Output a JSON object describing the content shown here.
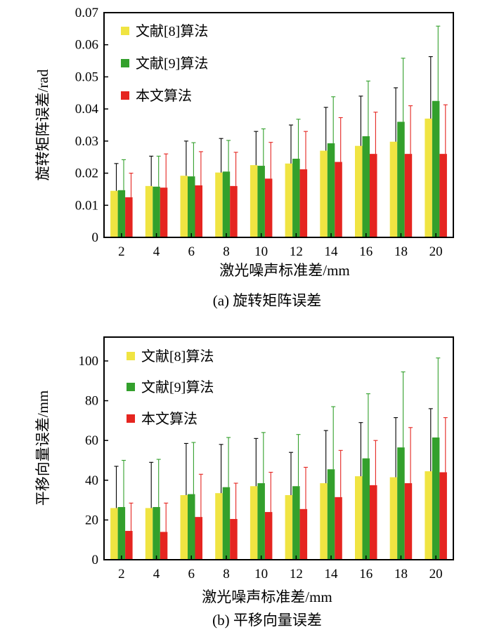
{
  "colors": {
    "series": [
      "#f0e442",
      "#33a02c",
      "#e52520"
    ],
    "error_bar": "#000000",
    "axis": "#000000"
  },
  "chart_data": [
    {
      "type": "bar",
      "caption": "(a) 旋转矩阵误差",
      "xlabel": "激光噪声标准差/mm",
      "ylabel": "旋转矩阵误差/rad",
      "categories": [
        "2",
        "4",
        "6",
        "8",
        "10",
        "12",
        "14",
        "16",
        "18",
        "20"
      ],
      "ylim": [
        0,
        0.07
      ],
      "yticks": [
        0,
        0.01,
        0.02,
        0.03,
        0.04,
        0.05,
        0.06,
        0.07
      ],
      "ytick_labels": [
        "0",
        "0.01",
        "0.02",
        "0.03",
        "0.04",
        "0.05",
        "0.06",
        "0.07"
      ],
      "legend_position": "top-left",
      "series": [
        {
          "name": "文献[8]算法",
          "values": [
            0.0145,
            0.016,
            0.0192,
            0.0202,
            0.0225,
            0.023,
            0.027,
            0.0285,
            0.0298,
            0.037
          ],
          "errors": [
            0.0085,
            0.0093,
            0.0108,
            0.0106,
            0.0105,
            0.012,
            0.0135,
            0.0155,
            0.0168,
            0.0193
          ]
        },
        {
          "name": "文献[9]算法",
          "values": [
            0.0147,
            0.0158,
            0.019,
            0.0205,
            0.0223,
            0.0245,
            0.0293,
            0.0315,
            0.036,
            0.0425
          ],
          "errors": [
            0.0095,
            0.0095,
            0.0105,
            0.0097,
            0.0115,
            0.0123,
            0.0145,
            0.0172,
            0.0198,
            0.0233
          ]
        },
        {
          "name": "本文算法",
          "values": [
            0.0125,
            0.0155,
            0.0162,
            0.016,
            0.0183,
            0.0212,
            0.0235,
            0.026,
            0.026,
            0.026
          ],
          "errors": [
            0.0075,
            0.0105,
            0.0105,
            0.0105,
            0.0113,
            0.0118,
            0.0138,
            0.013,
            0.015,
            0.0153
          ]
        }
      ]
    },
    {
      "type": "bar",
      "caption": "(b) 平移向量误差",
      "xlabel": "激光噪声标准差/mm",
      "ylabel": "平移向量误差/mm",
      "categories": [
        "2",
        "4",
        "6",
        "8",
        "10",
        "12",
        "14",
        "16",
        "18",
        "20"
      ],
      "ylim": [
        0,
        112
      ],
      "yticks": [
        0,
        20,
        40,
        60,
        80,
        100
      ],
      "ytick_labels": [
        "0",
        "20",
        "40",
        "60",
        "80",
        "100"
      ],
      "legend_position": "top-left",
      "series": [
        {
          "name": "文献[8]算法",
          "values": [
            26,
            26,
            32.5,
            33.5,
            37,
            32.5,
            38.5,
            42,
            41.5,
            44.5
          ],
          "errors": [
            21,
            23,
            26,
            24.5,
            24,
            21.5,
            26.5,
            27,
            30,
            31.5
          ]
        },
        {
          "name": "文献[9]算法",
          "values": [
            26.5,
            26.5,
            33,
            36.5,
            38.5,
            37,
            45.5,
            51,
            56.5,
            61.5
          ],
          "errors": [
            23.5,
            24,
            26,
            25,
            25.5,
            26,
            31.5,
            32.5,
            38,
            40
          ]
        },
        {
          "name": "本文算法",
          "values": [
            14.5,
            14,
            21.5,
            20.5,
            24,
            25.5,
            31.5,
            37.5,
            38.5,
            44
          ],
          "errors": [
            14,
            14.5,
            21.5,
            18,
            20,
            21,
            23.5,
            22.5,
            28,
            27.5
          ]
        }
      ]
    }
  ]
}
